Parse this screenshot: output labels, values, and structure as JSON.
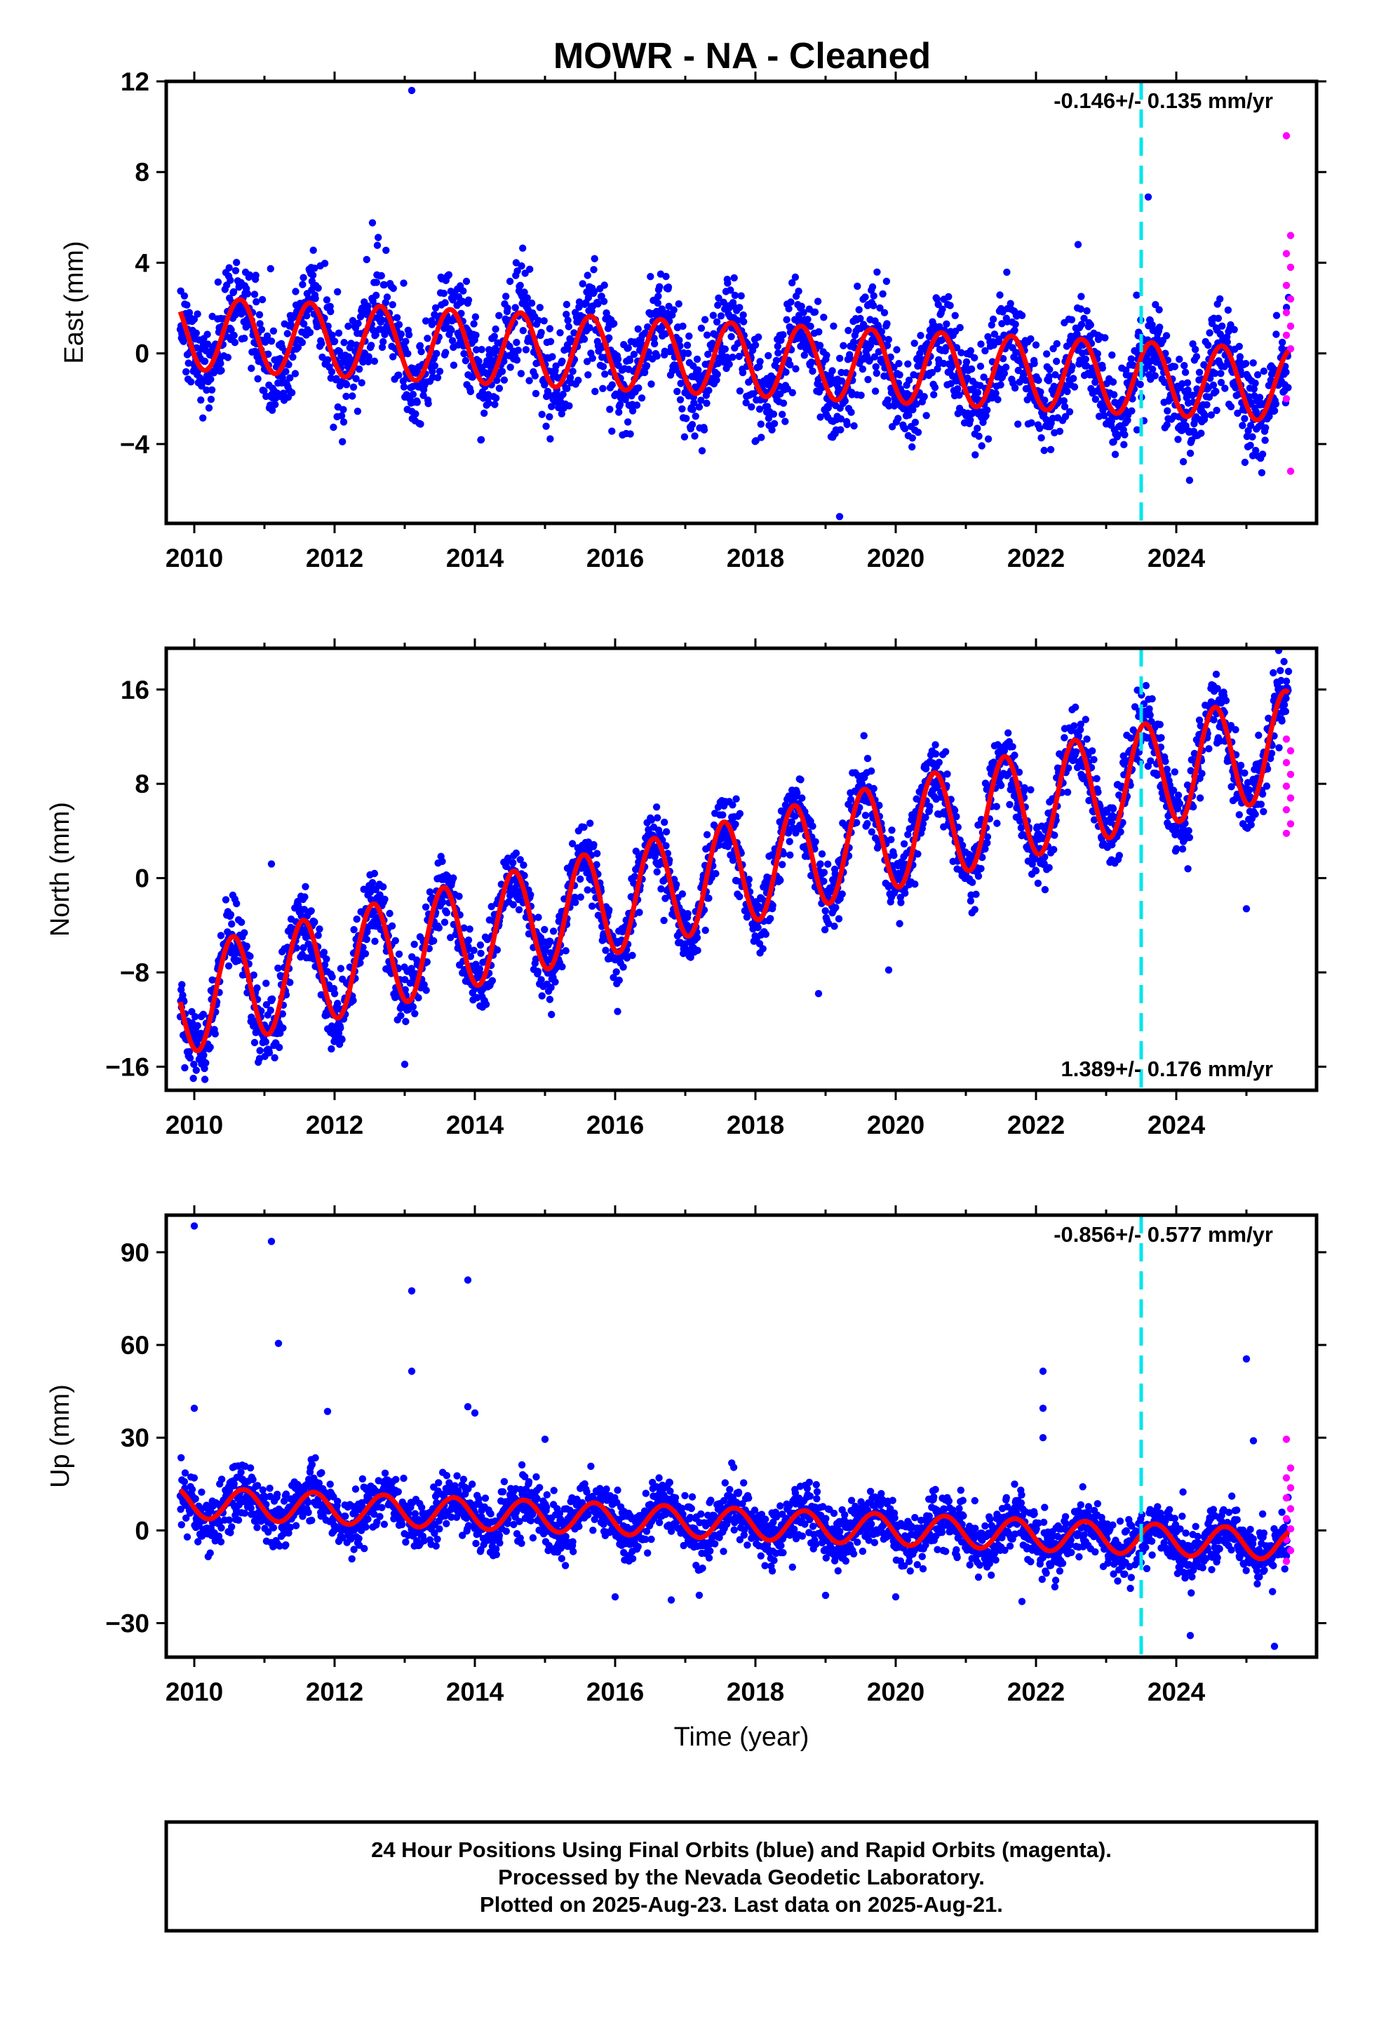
{
  "title": "MOWR  - NA - Cleaned",
  "colors": {
    "final": "#0000ff",
    "rapid": "#ff00ff",
    "model": "#ff0000",
    "event": "#00e5ee"
  },
  "chart_data": [
    {
      "type": "scatter",
      "panel": "east",
      "ylabel": "East (mm)",
      "xlabel": "",
      "xlim": [
        2009.6,
        2026.0
      ],
      "ylim": [
        -7.5,
        12.0
      ],
      "yticks": [
        -4,
        0,
        4,
        8,
        12
      ],
      "xticks": [
        2010,
        2012,
        2014,
        2016,
        2018,
        2020,
        2022,
        2024
      ],
      "rate_label": "-0.146+/- 0.135 mm/yr",
      "rate_position": "top-right",
      "event_line_x": 2023.5,
      "trend": {
        "start": 2009.8,
        "end": 2025.6,
        "y0": 0.9,
        "slope": -0.146,
        "seasonal_amp": 1.6,
        "peak_phase": 0.65,
        "noise_sd": 1.1
      },
      "rapid_points": {
        "x": 2025.6,
        "y": [
          9.6,
          5.2,
          4.4,
          3.8,
          3.0,
          2.4,
          1.8,
          1.2,
          0.8,
          0.2,
          -2.0,
          -5.2
        ]
      },
      "outliers": [
        {
          "x": 2013.1,
          "y": 11.6
        },
        {
          "x": 2019.2,
          "y": -7.2
        },
        {
          "x": 2023.6,
          "y": 6.9
        },
        {
          "x": 2022.6,
          "y": 4.8
        }
      ]
    },
    {
      "type": "scatter",
      "panel": "north",
      "ylabel": "North (mm)",
      "xlabel": "",
      "xlim": [
        2009.6,
        2026.0
      ],
      "ylim": [
        -18.0,
        19.5
      ],
      "yticks": [
        -16,
        -8,
        0,
        8,
        16
      ],
      "xticks": [
        2010,
        2012,
        2014,
        2016,
        2018,
        2020,
        2022,
        2024
      ],
      "rate_label": "1.389+/- 0.176 mm/yr",
      "rate_position": "bottom-right",
      "event_line_x": 2023.5,
      "trend": {
        "start": 2009.8,
        "end": 2025.6,
        "y0": -10.5,
        "slope": 1.389,
        "seasonal_amp": 4.5,
        "peak_phase": 0.55,
        "noise_sd": 1.5
      },
      "rapid_points": {
        "x": 2025.6,
        "y": [
          11.8,
          10.8,
          9.8,
          8.8,
          7.8,
          6.8,
          5.8,
          4.6,
          3.8
        ]
      },
      "outliers": [
        {
          "x": 2011.1,
          "y": 1.2
        },
        {
          "x": 2013.0,
          "y": -15.8
        },
        {
          "x": 2018.9,
          "y": -9.8
        },
        {
          "x": 2019.9,
          "y": -7.8
        },
        {
          "x": 2025.0,
          "y": -2.6
        }
      ]
    },
    {
      "type": "scatter",
      "panel": "up",
      "ylabel": "Up (mm)",
      "xlabel": "Time (year)",
      "xlim": [
        2009.6,
        2026.0
      ],
      "ylim": [
        -41.0,
        102.0
      ],
      "yticks": [
        -30,
        0,
        30,
        60,
        90
      ],
      "xticks": [
        2010,
        2012,
        2014,
        2016,
        2018,
        2020,
        2022,
        2024
      ],
      "rate_label": "-0.856+/- 0.577 mm/yr",
      "rate_position": "top-right",
      "event_line_x": 2023.5,
      "trend": {
        "start": 2009.8,
        "end": 2025.6,
        "y0": 9.0,
        "slope": -0.856,
        "seasonal_amp": 5.0,
        "peak_phase": 0.7,
        "noise_sd": 4.5
      },
      "rapid_points": {
        "x": 2025.6,
        "y": [
          29.5,
          20.2,
          17.0,
          13.8,
          10.5,
          7.0,
          3.8,
          0.5,
          -3.0,
          -6.5,
          -10.0
        ]
      },
      "outliers": [
        {
          "x": 2010.0,
          "y": 98.5
        },
        {
          "x": 2010.0,
          "y": 39.5
        },
        {
          "x": 2011.1,
          "y": 93.5
        },
        {
          "x": 2011.2,
          "y": 60.5
        },
        {
          "x": 2011.9,
          "y": 38.5
        },
        {
          "x": 2013.1,
          "y": 77.5
        },
        {
          "x": 2013.1,
          "y": 51.5
        },
        {
          "x": 2013.9,
          "y": 81.0
        },
        {
          "x": 2013.9,
          "y": 40.0
        },
        {
          "x": 2014.0,
          "y": 38.0
        },
        {
          "x": 2015.0,
          "y": 29.5
        },
        {
          "x": 2022.1,
          "y": 51.5
        },
        {
          "x": 2022.1,
          "y": 39.5
        },
        {
          "x": 2022.1,
          "y": 30.0
        },
        {
          "x": 2025.0,
          "y": 55.5
        },
        {
          "x": 2025.1,
          "y": 29.0
        },
        {
          "x": 2016.0,
          "y": -21.5
        },
        {
          "x": 2016.8,
          "y": -22.5
        },
        {
          "x": 2019.0,
          "y": -21.0
        },
        {
          "x": 2020.0,
          "y": -21.5
        },
        {
          "x": 2021.8,
          "y": -23.0
        },
        {
          "x": 2024.2,
          "y": -34.0
        },
        {
          "x": 2025.4,
          "y": -37.5
        }
      ]
    }
  ],
  "footer": {
    "line1": "24 Hour Positions Using Final Orbits (blue) and Rapid Orbits (magenta).",
    "line2": "Processed by the Nevada Geodetic Laboratory.",
    "line3": "Plotted on 2025-Aug-23. Last data on 2025-Aug-21."
  }
}
